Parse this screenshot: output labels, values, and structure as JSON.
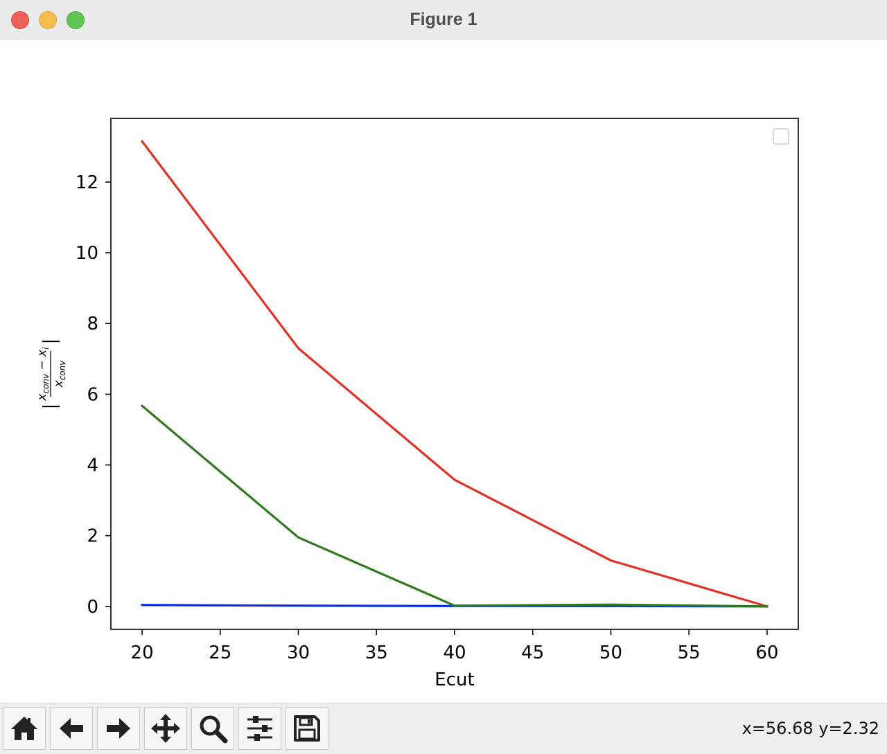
{
  "window": {
    "title": "Figure 1",
    "controls": [
      "close",
      "minimize",
      "zoom"
    ]
  },
  "toolbar": {
    "buttons": [
      {
        "name": "home",
        "icon": "home-icon"
      },
      {
        "name": "back",
        "icon": "arrow-left-icon"
      },
      {
        "name": "forward",
        "icon": "arrow-right-icon"
      },
      {
        "name": "pan",
        "icon": "move-icon"
      },
      {
        "name": "zoom",
        "icon": "magnifier-icon"
      },
      {
        "name": "configure-subplots",
        "icon": "sliders-icon"
      },
      {
        "name": "save",
        "icon": "floppy-disk-icon"
      }
    ],
    "coordinates": "x=56.68 y=2.32"
  },
  "chart_data": {
    "type": "line",
    "title": "",
    "xlabel": "Ecut",
    "ylabel": "|(x_conv − x_i) / x_conv|",
    "ylabel_parts": {
      "open": "|",
      "numerator": "x",
      "numerator_sub": "conv",
      "minus": "−",
      "numerator2": "x",
      "numerator2_sub": "i",
      "denominator": "x",
      "denominator_sub": "conv",
      "close": "|"
    },
    "xlim": [
      18,
      62
    ],
    "ylim": [
      -0.65,
      13.8
    ],
    "xticks": [
      20,
      25,
      30,
      35,
      40,
      45,
      50,
      55,
      60
    ],
    "yticks": [
      0,
      2,
      4,
      6,
      8,
      10,
      12
    ],
    "grid": false,
    "legend": {
      "placement": "upper right",
      "entries": []
    },
    "x": [
      20,
      30,
      40,
      50,
      60
    ],
    "series": [
      {
        "color": "#e03127",
        "values": [
          13.15,
          7.3,
          3.58,
          1.3,
          0
        ]
      },
      {
        "color": "#2e7a1e",
        "values": [
          5.67,
          1.95,
          0.02,
          0.05,
          0
        ]
      },
      {
        "color": "#0a2ce6",
        "values": [
          0.04,
          0.02,
          0.01,
          0.01,
          0
        ]
      }
    ]
  }
}
